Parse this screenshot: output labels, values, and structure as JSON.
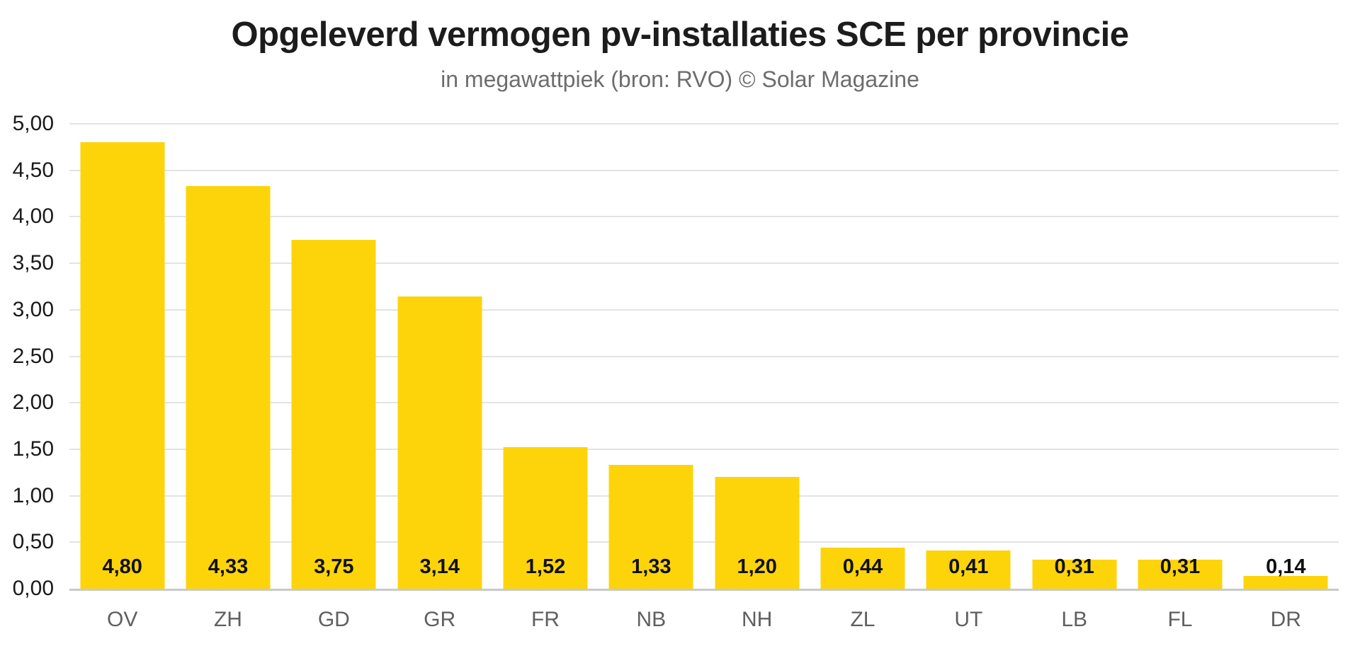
{
  "header": {
    "title": "Opgeleverd vermogen pv-installaties SCE per provincie",
    "subtitle": "in megawattpiek (bron: RVO) © Solar Magazine"
  },
  "colors": {
    "bar": "#FDD40A",
    "gridline": "#e3e3e3",
    "axis_line": "#c9c9c9",
    "title_text": "#1c1c1c",
    "subtitle_text": "#6d6d6d",
    "ytick_text": "#1a1a1a",
    "category_text": "#5f5f5f",
    "value_text": "#111111",
    "background": "#ffffff"
  },
  "chart_data": {
    "type": "bar",
    "title": "Opgeleverd vermogen pv-installaties SCE per provincie",
    "subtitle": "in megawattpiek (bron: RVO) © Solar Magazine",
    "categories": [
      "OV",
      "ZH",
      "GD",
      "GR",
      "FR",
      "NB",
      "NH",
      "ZL",
      "UT",
      "LB",
      "FL",
      "DR"
    ],
    "values": [
      4.8,
      4.33,
      3.75,
      3.14,
      1.52,
      1.33,
      1.2,
      0.44,
      0.41,
      0.31,
      0.31,
      0.14
    ],
    "value_labels": [
      "4,80",
      "4,33",
      "3,75",
      "3,14",
      "1,52",
      "1,33",
      "1,20",
      "0,44",
      "0,41",
      "0,31",
      "0,31",
      "0,14"
    ],
    "xlabel": "",
    "ylabel": "",
    "ylim": [
      0,
      5
    ],
    "ytick_step": 0.5,
    "ytick_labels": [
      "0,00",
      "0,50",
      "1,00",
      "1,50",
      "2,00",
      "2,50",
      "3,00",
      "3,50",
      "4,00",
      "4,50",
      "5,00"
    ],
    "grid": "horizontal-only",
    "legend_position": "none",
    "bar_color": "#FDD40A",
    "value_label_position": "fixed-near-baseline"
  }
}
